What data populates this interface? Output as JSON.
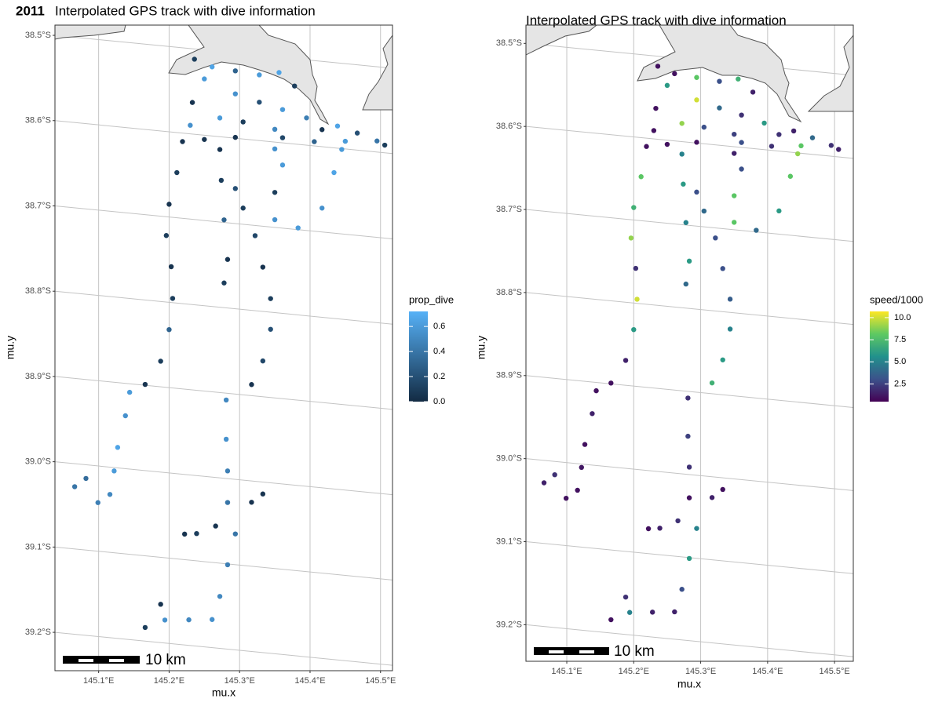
{
  "chart_data": [
    {
      "type": "scatter",
      "tag": "2011",
      "title": "Interpolated GPS track with dive information",
      "xlabel": "mu.x",
      "ylabel": "mu.y",
      "scale_bar_label": "10 km",
      "xlim": [
        145.038,
        145.517
      ],
      "ylim": [
        -39.245,
        -38.488
      ],
      "xticks": [
        {
          "value": 145.1,
          "label": "145.1°E"
        },
        {
          "value": 145.2,
          "label": "145.2°E"
        },
        {
          "value": 145.3,
          "label": "145.3°E"
        },
        {
          "value": 145.4,
          "label": "145.4°E"
        },
        {
          "value": 145.5,
          "label": "145.5°E"
        }
      ],
      "yticks": [
        {
          "value": -38.5,
          "label": "38.5°S"
        },
        {
          "value": -38.6,
          "label": "38.6°S"
        },
        {
          "value": -38.7,
          "label": "38.7°S"
        },
        {
          "value": -38.8,
          "label": "38.8°S"
        },
        {
          "value": -38.9,
          "label": "38.9°S"
        },
        {
          "value": -39.0,
          "label": "39.0°S"
        },
        {
          "value": -39.1,
          "label": "39.1°S"
        },
        {
          "value": -39.2,
          "label": "39.2°S"
        }
      ],
      "grid": true,
      "x": [
        145.236,
        145.25,
        145.233,
        145.23,
        145.261,
        145.294,
        145.328,
        145.356,
        145.378,
        145.294,
        145.328,
        145.361,
        145.395,
        145.417,
        145.272,
        145.305,
        145.35,
        145.439,
        145.467,
        145.495,
        145.506,
        145.45,
        145.406,
        145.361,
        145.294,
        145.25,
        145.219,
        145.211,
        145.2,
        145.196,
        145.203,
        145.205,
        145.2,
        145.188,
        145.166,
        145.144,
        145.138,
        145.127,
        145.122,
        145.116,
        145.099,
        145.066,
        145.082,
        145.272,
        145.274,
        145.278,
        145.283,
        145.278,
        145.294,
        145.305,
        145.322,
        145.333,
        145.344,
        145.344,
        145.333,
        145.317,
        145.281,
        145.281,
        145.283,
        145.283,
        145.266,
        145.239,
        145.222,
        145.294,
        145.283,
        145.272,
        145.261,
        145.228,
        145.194,
        145.166,
        145.188,
        145.35,
        145.361,
        145.35,
        145.35,
        145.383,
        145.417,
        145.434,
        145.445,
        145.317,
        145.333
      ],
      "y": [
        -38.512,
        -38.534,
        -38.563,
        -38.59,
        -38.519,
        -38.521,
        -38.523,
        -38.518,
        -38.532,
        -38.548,
        -38.555,
        -38.561,
        -38.568,
        -38.58,
        -38.578,
        -38.58,
        -38.585,
        -38.574,
        -38.58,
        -38.587,
        -38.591,
        -38.591,
        -38.595,
        -38.594,
        -38.599,
        -38.605,
        -38.61,
        -38.647,
        -38.685,
        -38.722,
        -38.758,
        -38.795,
        -38.832,
        -38.87,
        -38.899,
        -38.91,
        -38.938,
        -38.976,
        -39.004,
        -39.032,
        -39.043,
        -39.027,
        -39.016,
        -38.615,
        -38.651,
        -38.697,
        -38.743,
        -38.771,
        -38.659,
        -38.681,
        -38.712,
        -38.748,
        -38.784,
        -38.82,
        -38.858,
        -38.887,
        -38.908,
        -38.954,
        -38.991,
        -39.028,
        -39.057,
        -39.068,
        -39.07,
        -39.064,
        -39.101,
        -39.139,
        -39.167,
        -39.17,
        -39.173,
        -39.184,
        -39.155,
        -38.608,
        -38.626,
        -38.659,
        -38.691,
        -38.698,
        -38.672,
        -38.629,
        -38.601,
        -39.025,
        -39.014
      ],
      "color_title": "prop_dive",
      "color_values": [
        0.1,
        0.6,
        0.05,
        0.55,
        0.65,
        0.3,
        0.6,
        0.65,
        0.1,
        0.55,
        0.2,
        0.6,
        0.45,
        0.05,
        0.6,
        0.1,
        0.5,
        0.65,
        0.2,
        0.4,
        0.1,
        0.6,
        0.3,
        0.15,
        0.05,
        0.05,
        0.05,
        0.1,
        0.05,
        0.1,
        0.05,
        0.1,
        0.3,
        0.1,
        0.05,
        0.6,
        0.55,
        0.65,
        0.6,
        0.5,
        0.45,
        0.4,
        0.35,
        0.05,
        0.1,
        0.3,
        0.05,
        0.1,
        0.2,
        0.1,
        0.15,
        0.05,
        0.1,
        0.2,
        0.15,
        0.05,
        0.5,
        0.55,
        0.45,
        0.4,
        0.05,
        0.1,
        0.05,
        0.4,
        0.45,
        0.5,
        0.55,
        0.5,
        0.55,
        0.1,
        0.05,
        0.55,
        0.6,
        0.1,
        0.55,
        0.6,
        0.55,
        0.65,
        0.6,
        0.05,
        0.05
      ],
      "colors": [
        "#132b43",
        "#56b1f7"
      ],
      "clim": [
        0,
        0.72
      ],
      "cticks": [
        {
          "value": 0,
          "label": "0.0"
        },
        {
          "value": 0.2,
          "label": "0.2"
        },
        {
          "value": 0.4,
          "label": "0.4"
        },
        {
          "value": 0.6,
          "label": "0.6"
        }
      ]
    },
    {
      "type": "scatter",
      "title": "Interpolated GPS track with dive information",
      "xlabel": "mu.x",
      "ylabel": "mu.y",
      "scale_bar_label": "10 km",
      "xlim": [
        145.039,
        145.528
      ],
      "ylim": [
        -39.244,
        -38.478
      ],
      "xticks": [
        {
          "value": 145.1,
          "label": "145.1°E"
        },
        {
          "value": 145.2,
          "label": "145.2°E"
        },
        {
          "value": 145.3,
          "label": "145.3°E"
        },
        {
          "value": 145.4,
          "label": "145.4°E"
        },
        {
          "value": 145.5,
          "label": "145.5°E"
        }
      ],
      "yticks": [
        {
          "value": -38.5,
          "label": "38.5°S"
        },
        {
          "value": -38.6,
          "label": "38.6°S"
        },
        {
          "value": -38.7,
          "label": "38.7°S"
        },
        {
          "value": -38.8,
          "label": "38.8°S"
        },
        {
          "value": -38.9,
          "label": "38.9°S"
        },
        {
          "value": -39.0,
          "label": "39.0°S"
        },
        {
          "value": -39.1,
          "label": "39.1°S"
        },
        {
          "value": -39.2,
          "label": "39.2°S"
        }
      ],
      "grid": true,
      "x": [
        145.236,
        145.25,
        145.233,
        145.23,
        145.261,
        145.294,
        145.328,
        145.356,
        145.378,
        145.294,
        145.328,
        145.361,
        145.395,
        145.417,
        145.272,
        145.305,
        145.35,
        145.439,
        145.467,
        145.495,
        145.506,
        145.45,
        145.406,
        145.361,
        145.294,
        145.25,
        145.219,
        145.211,
        145.2,
        145.196,
        145.203,
        145.205,
        145.2,
        145.188,
        145.166,
        145.144,
        145.138,
        145.127,
        145.122,
        145.116,
        145.099,
        145.066,
        145.082,
        145.272,
        145.274,
        145.278,
        145.283,
        145.278,
        145.294,
        145.305,
        145.322,
        145.333,
        145.344,
        145.344,
        145.333,
        145.317,
        145.281,
        145.281,
        145.283,
        145.283,
        145.266,
        145.239,
        145.222,
        145.294,
        145.283,
        145.272,
        145.261,
        145.228,
        145.194,
        145.166,
        145.188,
        145.35,
        145.361,
        145.35,
        145.35,
        145.383,
        145.417,
        145.434,
        145.445,
        145.317,
        145.333
      ],
      "y": [
        -38.512,
        -38.534,
        -38.563,
        -38.59,
        -38.519,
        -38.521,
        -38.523,
        -38.518,
        -38.532,
        -38.548,
        -38.555,
        -38.561,
        -38.568,
        -38.58,
        -38.578,
        -38.58,
        -38.585,
        -38.574,
        -38.58,
        -38.587,
        -38.591,
        -38.591,
        -38.595,
        -38.594,
        -38.599,
        -38.605,
        -38.61,
        -38.647,
        -38.685,
        -38.722,
        -38.758,
        -38.795,
        -38.832,
        -38.87,
        -38.899,
        -38.91,
        -38.938,
        -38.976,
        -39.004,
        -39.032,
        -39.043,
        -39.027,
        -39.016,
        -38.615,
        -38.651,
        -38.697,
        -38.743,
        -38.771,
        -38.659,
        -38.681,
        -38.712,
        -38.748,
        -38.784,
        -38.82,
        -38.858,
        -38.887,
        -38.908,
        -38.954,
        -38.991,
        -39.028,
        -39.057,
        -39.068,
        -39.07,
        -39.064,
        -39.101,
        -39.139,
        -39.167,
        -39.17,
        -39.173,
        -39.184,
        -39.155,
        -38.608,
        -38.626,
        -38.659,
        -38.691,
        -38.698,
        -38.672,
        -38.629,
        -38.601,
        -39.025,
        -39.014
      ],
      "color_title": "speed/1000",
      "color_values": [
        1,
        6,
        1,
        1,
        1,
        8,
        3,
        7,
        1.5,
        10,
        4,
        2,
        6,
        2,
        9,
        3,
        2.5,
        1.5,
        4,
        2,
        1.5,
        8,
        2,
        3,
        1,
        1,
        1,
        8,
        7,
        9,
        2,
        10,
        6,
        1.5,
        1,
        1,
        1.5,
        1,
        1.2,
        1,
        1,
        1.5,
        2,
        5,
        6,
        5,
        6,
        4,
        3,
        4,
        3,
        3,
        3.5,
        5,
        6,
        7,
        2,
        2.5,
        2,
        1,
        2,
        1.5,
        1,
        5,
        6,
        3,
        1.5,
        1.5,
        5,
        1,
        2,
        1.5,
        3,
        8,
        8,
        4,
        6,
        8,
        9,
        1.5,
        1
      ],
      "colors": [
        "#440154",
        "#3b528b",
        "#21918c",
        "#5ec962",
        "#fde725"
      ],
      "clim": [
        0.5,
        10.7
      ],
      "cticks": [
        2.5,
        {
          "value": 5,
          "label": "5.0"
        },
        7.5,
        {
          "value": 10,
          "label": "10.0"
        }
      ]
    }
  ]
}
